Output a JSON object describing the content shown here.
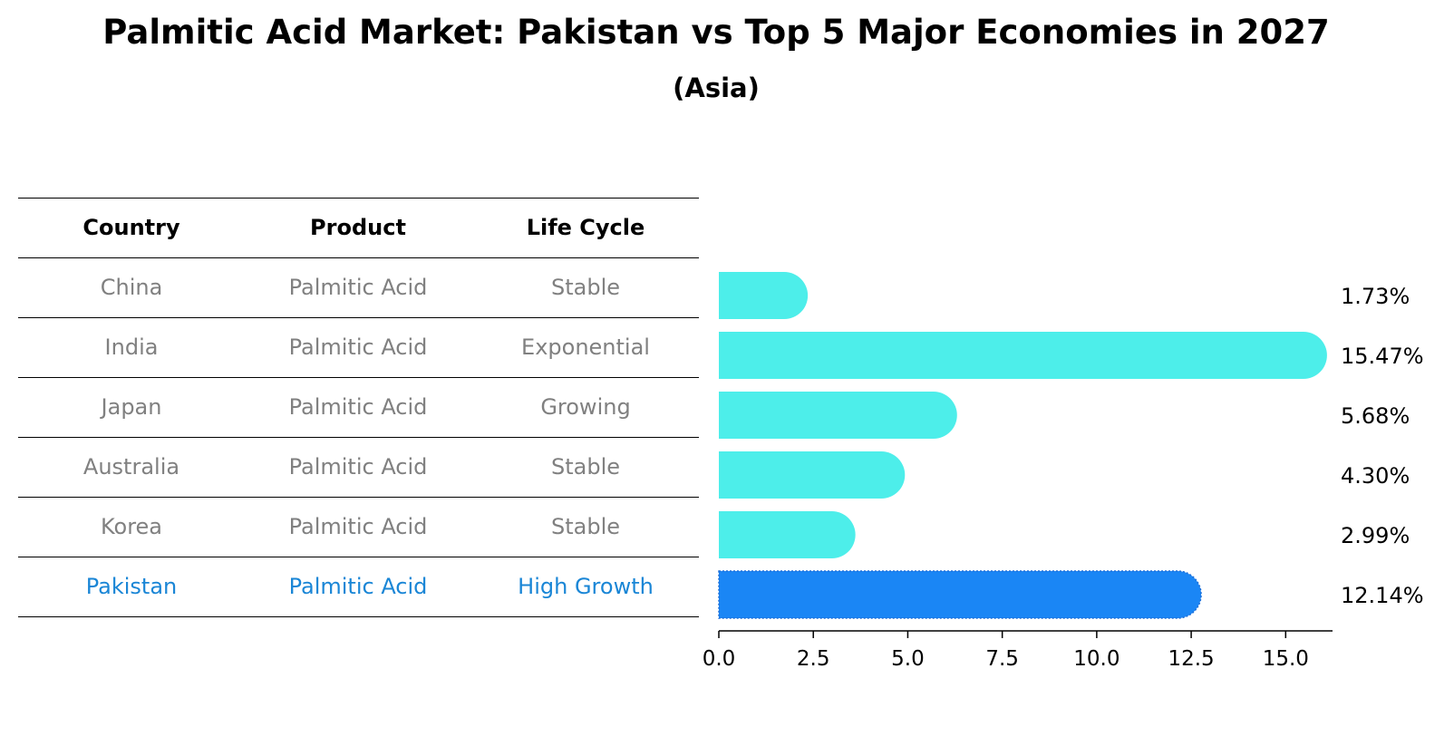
{
  "header": {
    "title": "Palmitic Acid Market: Pakistan vs Top 5 Major Economies in 2027",
    "subtitle": "(Asia)"
  },
  "table": {
    "columns": [
      "Country",
      "Product",
      "Life Cycle"
    ],
    "rows": [
      [
        "China",
        "Palmitic Acid",
        "Stable"
      ],
      [
        "India",
        "Palmitic Acid",
        "Exponential"
      ],
      [
        "Japan",
        "Palmitic Acid",
        "Growing"
      ],
      [
        "Australia",
        "Palmitic Acid",
        "Stable"
      ],
      [
        "Korea",
        "Palmitic Acid",
        "Stable"
      ],
      [
        "Pakistan",
        "Palmitic Acid",
        "High Growth"
      ]
    ]
  },
  "colors": {
    "bar": "#4deeea",
    "highlight_bar": "#1a86f5",
    "highlight_text": "#1a86d6",
    "muted_text": "#808080"
  },
  "chart_data": {
    "type": "bar",
    "orientation": "horizontal",
    "categories": [
      "China",
      "India",
      "Japan",
      "Australia",
      "Korea",
      "Pakistan"
    ],
    "values": [
      1.73,
      15.47,
      5.68,
      4.3,
      2.99,
      12.14
    ],
    "value_labels": [
      "1.73%",
      "15.47%",
      "5.68%",
      "4.30%",
      "2.99%",
      "12.14%"
    ],
    "highlight": "Pakistan",
    "xlim": [
      0,
      16.24
    ],
    "xticks": [
      0,
      2.5,
      5,
      7.5,
      10,
      12.5,
      15
    ],
    "xtick_labels": [
      "0.0",
      "2.5",
      "5.0",
      "7.5",
      "10.0",
      "12.5",
      "15.0"
    ],
    "xlabel": "",
    "ylabel": "",
    "grid": false,
    "legend": "none"
  }
}
